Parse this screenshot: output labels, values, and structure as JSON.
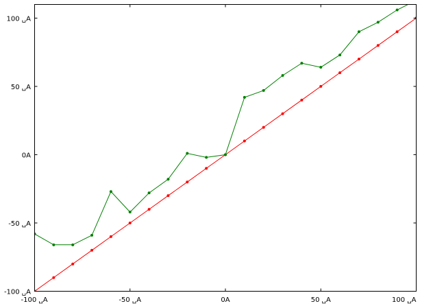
{
  "chart_data": {
    "type": "line",
    "title": "",
    "xlabel": "",
    "ylabel": "",
    "xlim": [
      -100,
      100
    ],
    "ylim": [
      -100,
      110
    ],
    "grid": false,
    "x_ticks": [
      {
        "value": -100,
        "label": "-100 ␣A"
      },
      {
        "value": -50,
        "label": "-50 ␣A"
      },
      {
        "value": 0,
        "label": "0A"
      },
      {
        "value": 50,
        "label": "50 ␣A"
      },
      {
        "value": 100,
        "label": "100 ␣A"
      }
    ],
    "y_ticks": [
      {
        "value": 100,
        "label": "100 ␣A"
      },
      {
        "value": 50,
        "label": "50 ␣A"
      },
      {
        "value": 0,
        "label": "0A"
      },
      {
        "value": -50,
        "label": "-50 ␣A"
      },
      {
        "value": -100,
        "label": "-100 ␣A"
      }
    ],
    "series": [
      {
        "color": "#ff0000",
        "x": [
          -100,
          -90,
          -80,
          -70,
          -60,
          -50,
          -40,
          -30,
          -20,
          -10,
          0,
          10,
          20,
          30,
          40,
          50,
          60,
          70,
          80,
          90,
          100
        ],
        "y": [
          -100,
          -90,
          -80,
          -70,
          -60,
          -50,
          -40,
          -30,
          -20,
          -10,
          0,
          10,
          20,
          30,
          40,
          50,
          60,
          70,
          80,
          90,
          100
        ]
      },
      {
        "color": "#008000",
        "x": [
          -100,
          -90,
          -80,
          -70,
          -60,
          -50,
          -40,
          -30,
          -20,
          -10,
          0,
          10,
          20,
          30,
          40,
          50,
          60,
          70,
          80,
          90,
          100
        ],
        "y": [
          -58,
          -66,
          -66,
          -59,
          -27,
          -42,
          -28,
          -18,
          1,
          -2,
          0,
          42,
          47,
          58,
          67,
          64,
          73,
          90,
          97,
          106,
          113
        ]
      }
    ]
  }
}
